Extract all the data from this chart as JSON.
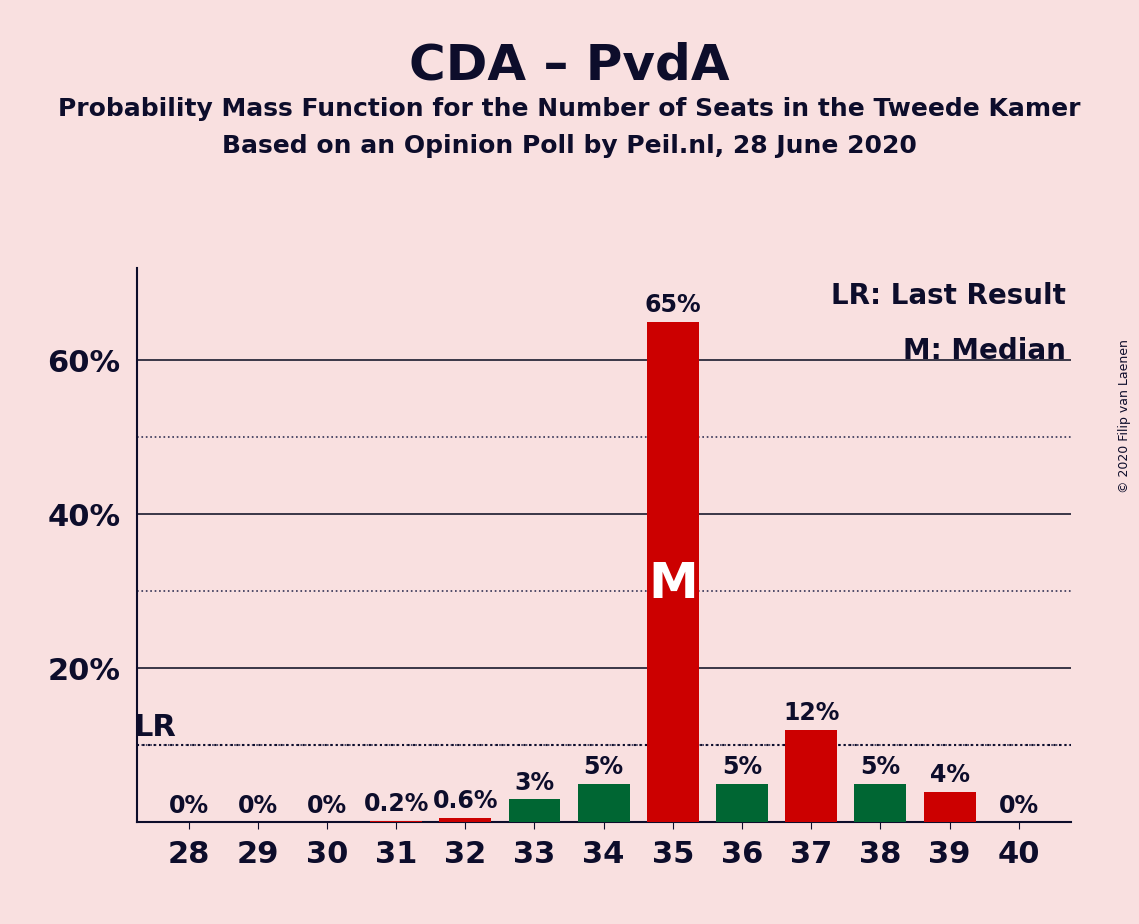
{
  "title": "CDA – PvdA",
  "subtitle1": "Probability Mass Function for the Number of Seats in the Tweede Kamer",
  "subtitle2": "Based on an Opinion Poll by Peil.nl, 28 June 2020",
  "copyright": "© 2020 Filip van Laenen",
  "seats": [
    28,
    29,
    30,
    31,
    32,
    33,
    34,
    35,
    36,
    37,
    38,
    39,
    40
  ],
  "probabilities": [
    0.0,
    0.0,
    0.0,
    0.002,
    0.006,
    0.03,
    0.05,
    0.65,
    0.05,
    0.12,
    0.05,
    0.04,
    0.0
  ],
  "bar_colors": [
    "#CC0000",
    "#CC0000",
    "#CC0000",
    "#CC0000",
    "#CC0000",
    "#006633",
    "#006633",
    "#CC0000",
    "#006633",
    "#CC0000",
    "#006633",
    "#CC0000",
    "#CC0000"
  ],
  "labels": [
    "0%",
    "0%",
    "0%",
    "0.2%",
    "0.6%",
    "3%",
    "5%",
    "65%",
    "5%",
    "12%",
    "5%",
    "4%",
    "0%"
  ],
  "median_seat": 35,
  "lr_value": 0.1,
  "background_color": "#f9e0e0",
  "title_fontsize": 36,
  "subtitle_fontsize": 18,
  "label_fontsize": 17,
  "tick_fontsize": 22,
  "legend_fontsize": 20,
  "median_fontsize": 36,
  "lr_fontsize": 22,
  "solid_grid_values": [
    0.2,
    0.4,
    0.6
  ],
  "dotted_grid_values": [
    0.1,
    0.3,
    0.5
  ],
  "ytick_values": [
    0.2,
    0.4,
    0.6
  ],
  "ytick_labels": [
    "20%",
    "40%",
    "60%"
  ],
  "dark_color": "#0d0d2b",
  "grid_solid_color": "#1a1a2e",
  "grid_dotted_color": "#333355",
  "lr_label": "LR",
  "median_label": "M",
  "legend_lr": "LR: Last Result",
  "legend_m": "M: Median"
}
